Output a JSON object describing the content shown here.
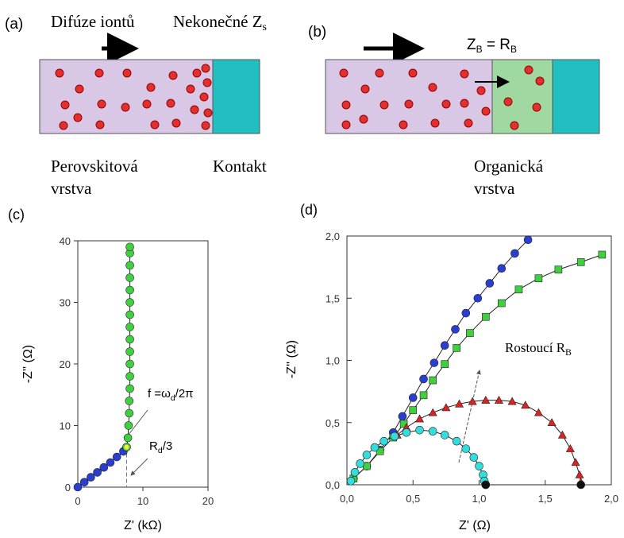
{
  "panel_a": {
    "label": "(a)",
    "arrow_text": "Difúze iontů",
    "boundary": {
      "main": "Nekonečné Z",
      "sub": "s"
    },
    "left_label": [
      "Perovskitová",
      "vrstva"
    ],
    "right_label": "Kontakt"
  },
  "panel_b": {
    "label": "(b)",
    "boundary": {
      "z": "Z",
      "zsub": "B",
      "eq": " = R",
      "rsub": "B"
    },
    "layer_label": [
      "Organická",
      "vrstva"
    ]
  },
  "chart_data": [
    {
      "type": "scatter",
      "label": "(c)",
      "xlabel": "Z' (kΩ)",
      "ylabel": "-Z'' (Ω)",
      "xlim": [
        0,
        20
      ],
      "xticks": [
        0,
        10,
        20
      ],
      "ylim": [
        0,
        40
      ],
      "yticks": [
        0,
        10,
        20,
        30,
        40
      ],
      "annotations": [
        {
          "main": "f =ω",
          "sub": "d",
          "tail": "/2π"
        },
        {
          "main": "R",
          "sub": "d",
          "tail": "/3"
        }
      ],
      "series": [
        {
          "color": "#2a3fd0",
          "marker": "circle",
          "x": [
            0,
            1,
            2,
            3,
            4,
            5,
            6,
            7,
            7.5
          ],
          "values": [
            0,
            0.8,
            1.6,
            2.4,
            3.2,
            4,
            4.9,
            5.8,
            6.5
          ]
        },
        {
          "color": "#3fcf3f",
          "marker": "circle",
          "x": [
            7.5,
            7.7,
            7.8,
            7.9,
            7.9,
            8,
            8,
            8,
            8,
            8,
            8,
            8,
            8,
            8,
            8,
            8,
            8,
            8
          ],
          "values": [
            6.5,
            8,
            10,
            12,
            14,
            16,
            18,
            20,
            22,
            24,
            26,
            28,
            30,
            32,
            34,
            36,
            38,
            39
          ]
        }
      ]
    },
    {
      "type": "scatter",
      "label": "(d)",
      "xlabel": "Z'  (Ω)",
      "ylabel": "-Z'' (Ω)",
      "xlim": [
        0,
        2.0
      ],
      "xticks": [
        {
          "value": 0,
          "label": "0,0"
        },
        {
          "value": 0.5,
          "label": "0,5"
        },
        {
          "value": 1,
          "label": "1,0"
        },
        {
          "value": 1.5,
          "label": "1,5"
        },
        {
          "value": 2,
          "label": "2,0"
        }
      ],
      "ylim": [
        0,
        2.0
      ],
      "yticks": [
        {
          "value": 0,
          "label": "0,0"
        },
        {
          "value": 0.5,
          "label": "0,5"
        },
        {
          "value": 1,
          "label": "1,0"
        },
        {
          "value": 1.5,
          "label": "1,5"
        },
        {
          "value": 2,
          "label": "2,0"
        }
      ],
      "annotations": [
        {
          "main": "Rostoucí R",
          "sub": "B",
          "tail": ""
        }
      ],
      "series": [
        {
          "color": "#2a3fd0",
          "marker": "circle",
          "x": [
            0.05,
            0.15,
            0.25,
            0.35,
            0.42,
            0.5,
            0.58,
            0.66,
            0.74,
            0.82,
            0.9,
            0.99,
            1.08,
            1.17,
            1.27,
            1.37
          ],
          "values": [
            0.05,
            0.15,
            0.28,
            0.42,
            0.55,
            0.7,
            0.85,
            0.98,
            1.12,
            1.25,
            1.38,
            1.5,
            1.62,
            1.74,
            1.86,
            1.97
          ]
        },
        {
          "color": "#3fcf3f",
          "marker": "square",
          "x": [
            0.05,
            0.15,
            0.25,
            0.35,
            0.43,
            0.5,
            0.58,
            0.65,
            0.74,
            0.83,
            0.93,
            1.05,
            1.17,
            1.3,
            1.45,
            1.6,
            1.77,
            1.93
          ],
          "values": [
            0.05,
            0.15,
            0.27,
            0.38,
            0.49,
            0.6,
            0.72,
            0.84,
            0.97,
            1.1,
            1.22,
            1.35,
            1.46,
            1.57,
            1.66,
            1.73,
            1.79,
            1.85
          ]
        },
        {
          "color": "#dd2222",
          "marker": "triangle",
          "x": [
            0.38,
            0.45,
            0.55,
            0.65,
            0.75,
            0.85,
            0.95,
            1.05,
            1.15,
            1.25,
            1.35,
            1.45,
            1.55,
            1.63,
            1.69,
            1.73,
            1.76,
            1.77
          ],
          "values": [
            0.4,
            0.46,
            0.53,
            0.58,
            0.62,
            0.65,
            0.67,
            0.68,
            0.68,
            0.67,
            0.64,
            0.58,
            0.5,
            0.4,
            0.29,
            0.18,
            0.08,
            0.02
          ]
        },
        {
          "color": "#33dddd",
          "marker": "circle",
          "x": [
            0.03,
            0.06,
            0.1,
            0.15,
            0.21,
            0.28,
            0.36,
            0.45,
            0.55,
            0.65,
            0.74,
            0.83,
            0.9,
            0.96,
            1.0,
            1.03,
            1.04,
            1.05
          ],
          "values": [
            0.03,
            0.1,
            0.17,
            0.24,
            0.3,
            0.35,
            0.39,
            0.42,
            0.44,
            0.43,
            0.4,
            0.35,
            0.29,
            0.22,
            0.15,
            0.08,
            0.03,
            0
          ]
        },
        {
          "color": "#111111",
          "marker": "circle",
          "x": [
            1.05,
            1.77
          ],
          "values": [
            0,
            0
          ]
        }
      ]
    }
  ]
}
